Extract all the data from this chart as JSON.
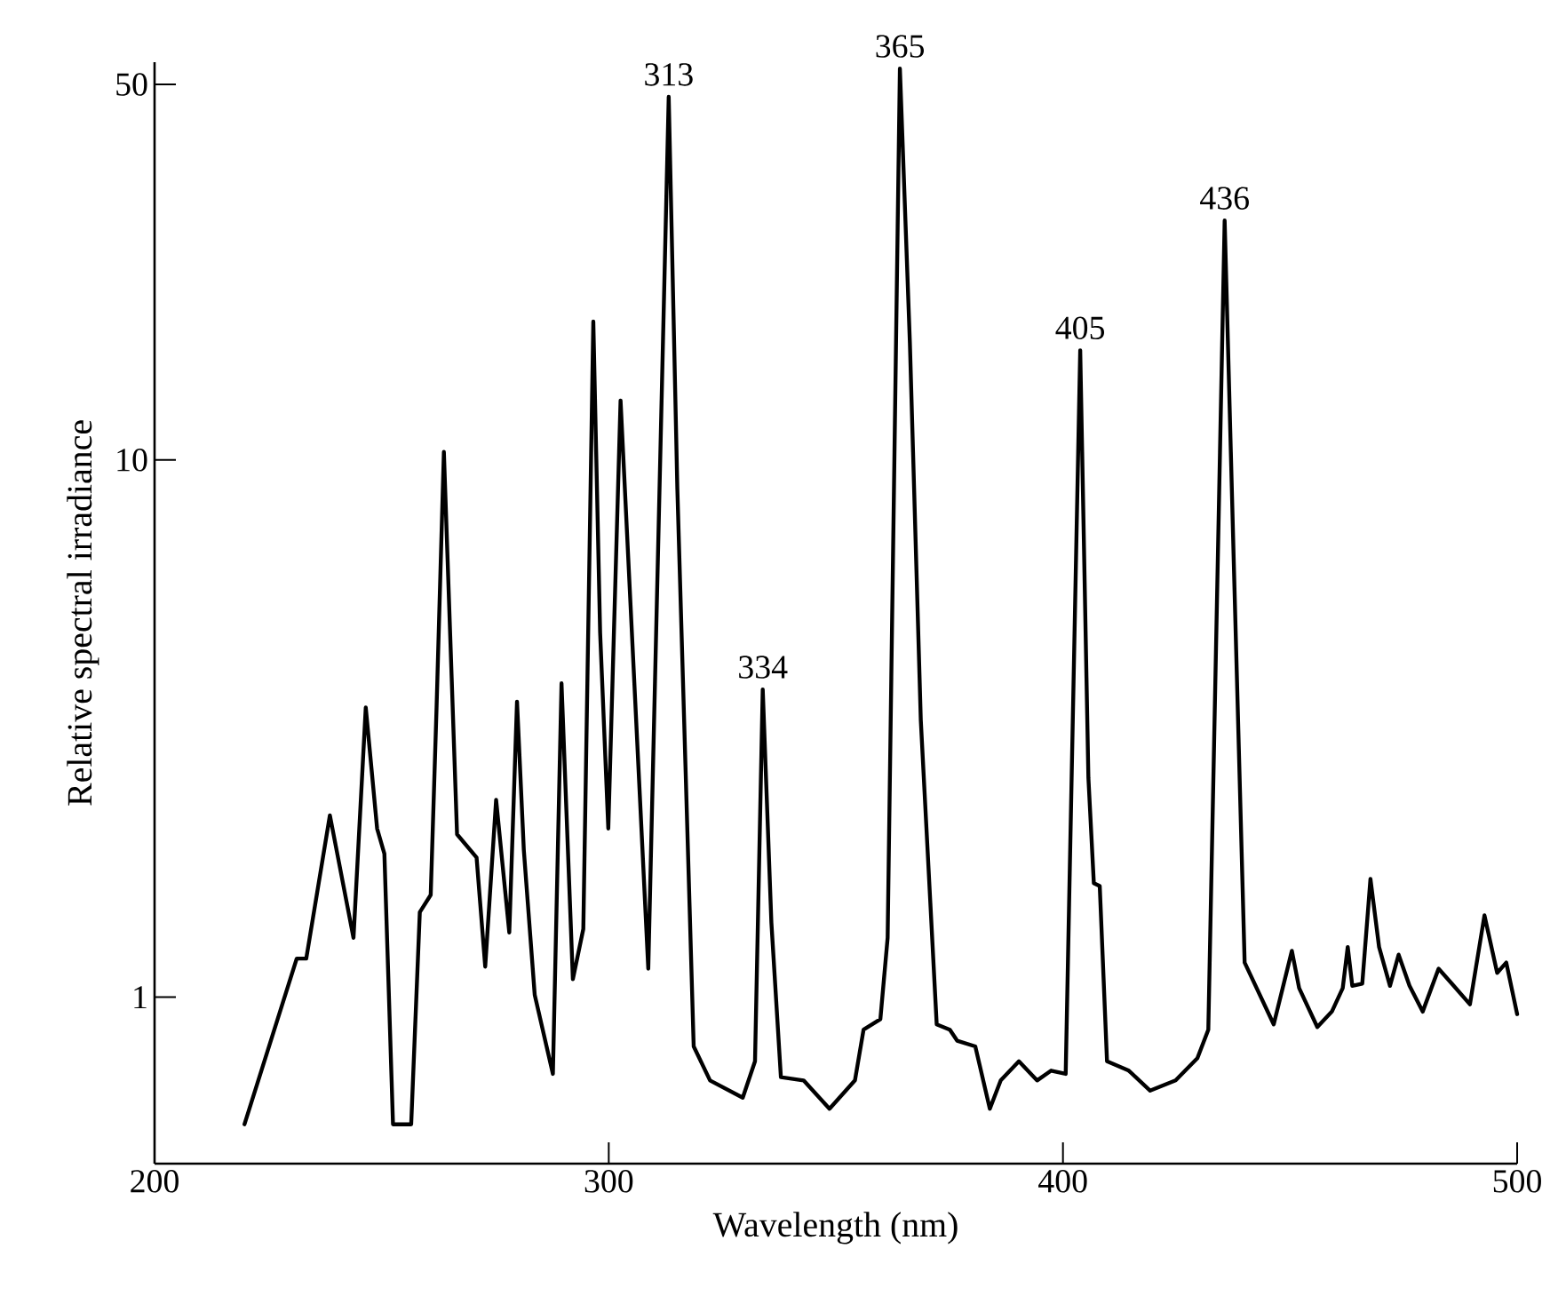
{
  "chart_data": {
    "type": "line",
    "xlabel": "Wavelength (nm)",
    "ylabel": "Relative spectral irradiance",
    "log": "y",
    "xlim": [
      200,
      500
    ],
    "ylim": [
      0.49,
      55
    ],
    "xticks": [
      200,
      300,
      400,
      500
    ],
    "yticks": [
      1,
      10,
      50
    ],
    "marker": "none",
    "line_style": "solid",
    "annotations": [
      {
        "text": "313",
        "x": 313.2,
        "y": 47.4
      },
      {
        "text": "334",
        "x": 333.9,
        "y": 3.74
      },
      {
        "text": "365",
        "x": 364.1,
        "y": 53.5
      },
      {
        "text": "405",
        "x": 403.8,
        "y": 16.0
      },
      {
        "text": "436",
        "x": 435.6,
        "y": 27.9
      }
    ],
    "series": [
      {
        "color": "#000000",
        "x": [
          219.8,
          231.3,
          233.4,
          238.6,
          243.8,
          246.5,
          249.0,
          250.6,
          252.5,
          256.5,
          258.4,
          260.8,
          262.1,
          263.7,
          266.6,
          270.9,
          272.8,
          275.2,
          278.1,
          279.8,
          281.3,
          283.7,
          287.7,
          289.6,
          292.1,
          294.4,
          296.6,
          298.1,
          299.9,
          302.6,
          308.7,
          313.2,
          315.1,
          318.7,
          322.3,
          329.5,
          332.2,
          333.9,
          335.8,
          337.9,
          342.9,
          348.6,
          354.2,
          356.1,
          359.8,
          361.4,
          364.1,
          366.3,
          368.7,
          372.2,
          375.1,
          376.7,
          380.7,
          383.9,
          386.3,
          390.3,
          394.3,
          397.4,
          400.6,
          403.8,
          405.6,
          406.8,
          408.1,
          409.7,
          414.5,
          419.2,
          424.8,
          429.6,
          432.0,
          435.6,
          437.6,
          440.0,
          446.4,
          450.4,
          452.0,
          456.0,
          459.2,
          461.6,
          462.7,
          463.7,
          465.9,
          467.7,
          469.6,
          472.0,
          473.9,
          476.3,
          479.2,
          482.7,
          485.6,
          489.6,
          492.8,
          495.6,
          497.6,
          500.0
        ],
        "values": [
          0.58,
          1.18,
          1.18,
          2.18,
          1.29,
          3.46,
          2.06,
          1.85,
          0.58,
          0.58,
          1.44,
          1.55,
          3.49,
          10.35,
          2.01,
          1.82,
          1.14,
          2.33,
          1.32,
          3.55,
          1.88,
          1.01,
          0.72,
          3.84,
          1.08,
          1.34,
          18.1,
          4.77,
          2.06,
          12.9,
          1.13,
          47.4,
          8.84,
          0.81,
          0.7,
          0.65,
          0.76,
          3.74,
          1.38,
          0.71,
          0.7,
          0.62,
          0.7,
          0.87,
          0.91,
          1.29,
          53.5,
          16.5,
          3.28,
          0.89,
          0.87,
          0.83,
          0.81,
          0.62,
          0.7,
          0.76,
          0.7,
          0.73,
          0.72,
          16.0,
          2.56,
          1.63,
          1.61,
          0.76,
          0.73,
          0.67,
          0.7,
          0.77,
          0.87,
          27.9,
          6.5,
          1.16,
          0.89,
          1.22,
          1.04,
          0.88,
          0.94,
          1.04,
          1.24,
          1.05,
          1.06,
          1.66,
          1.24,
          1.05,
          1.2,
          1.05,
          0.94,
          1.13,
          1.06,
          0.97,
          1.42,
          1.11,
          1.16,
          0.93
        ]
      }
    ]
  }
}
